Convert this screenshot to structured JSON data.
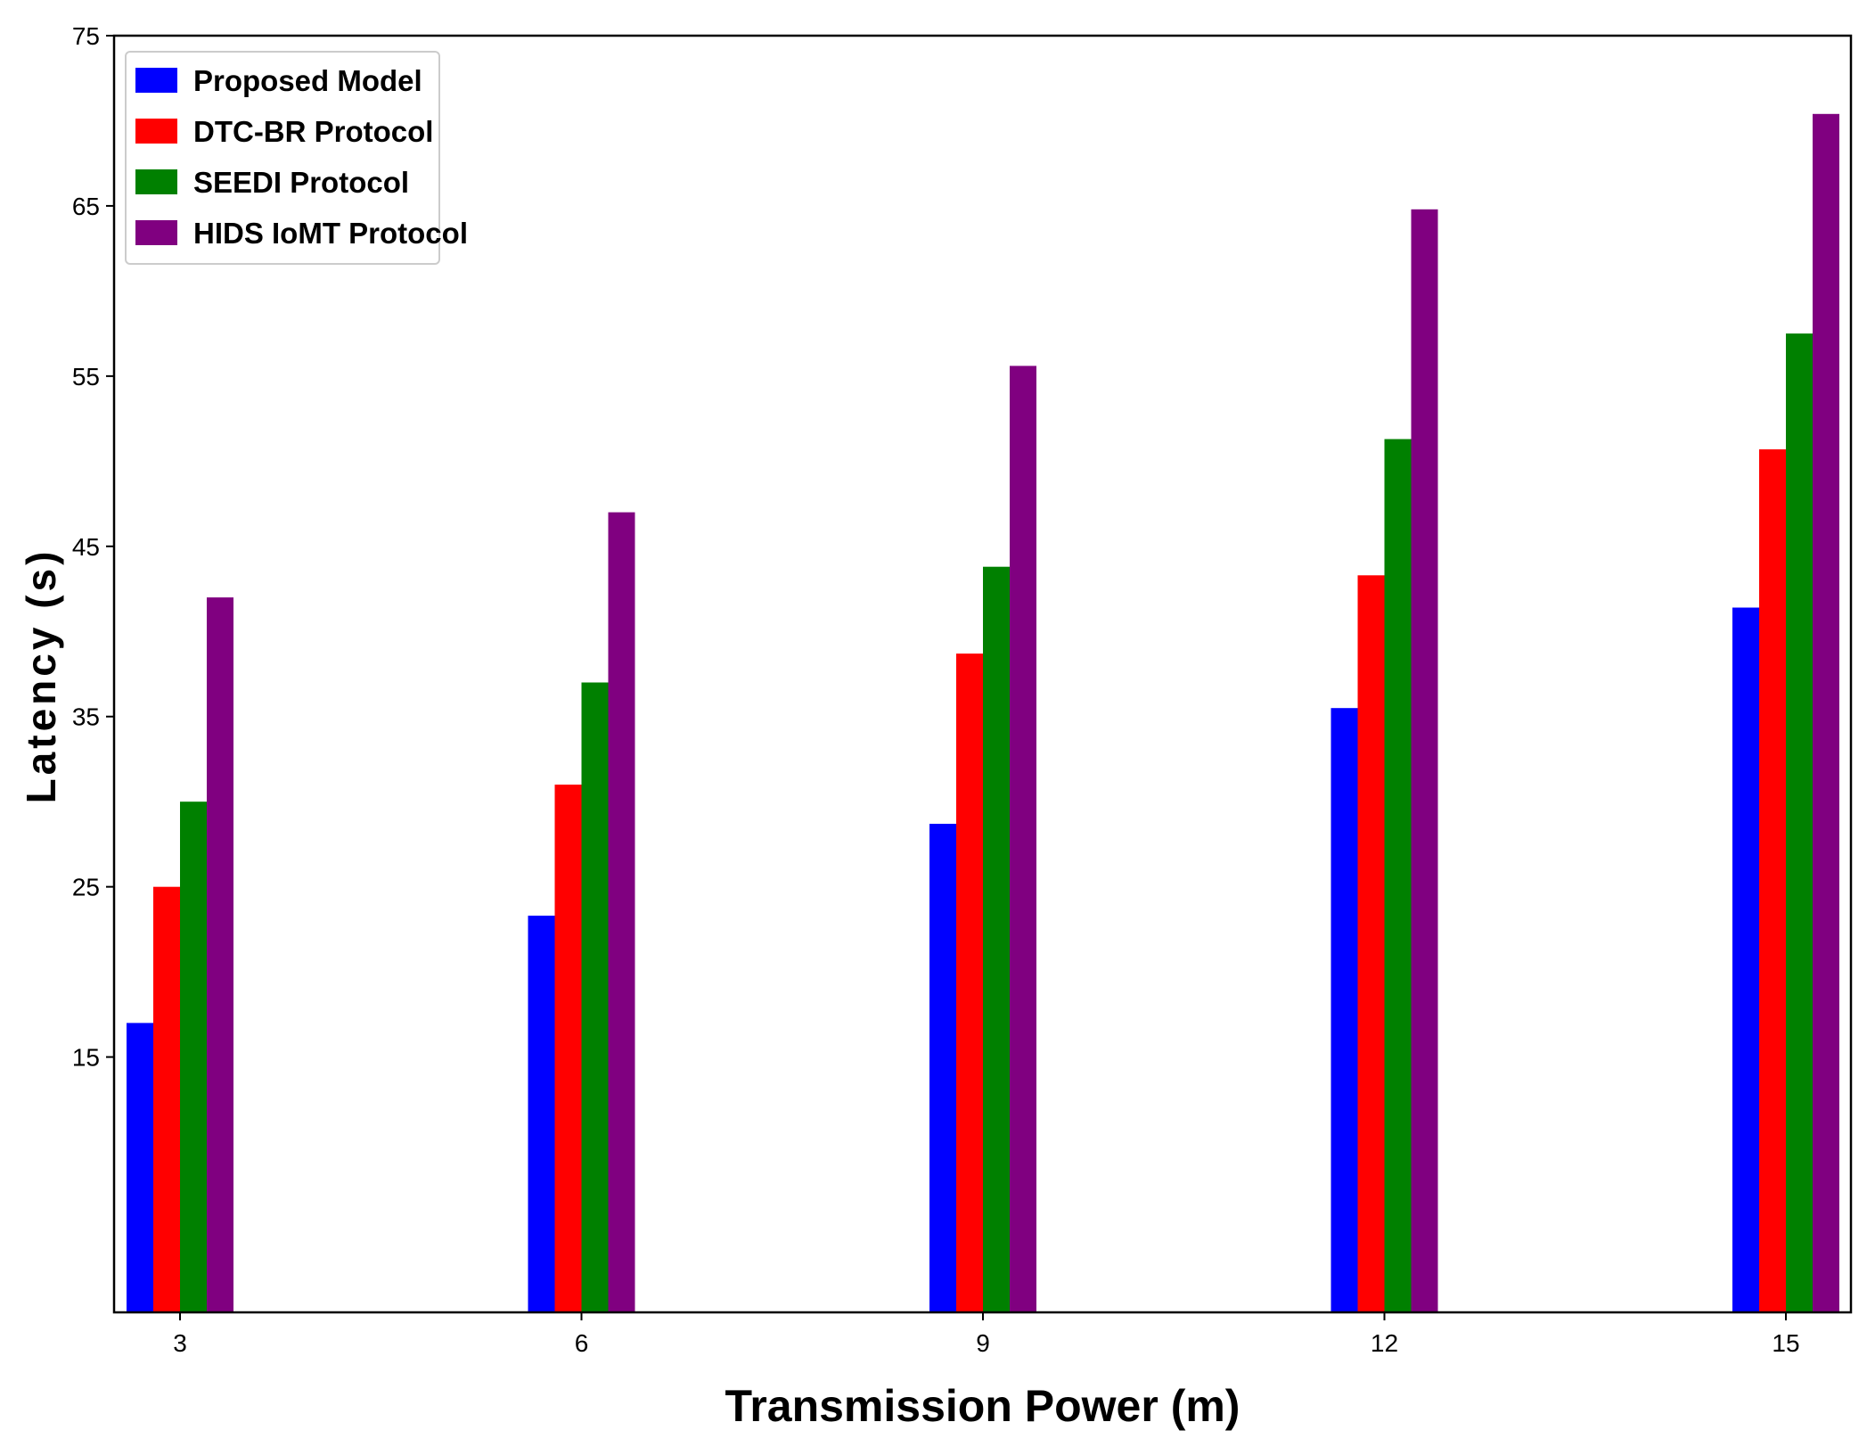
{
  "chart_data": {
    "type": "bar",
    "title": "",
    "xlabel": "Transmission Power (m)",
    "ylabel": "Latency (s)",
    "categories": [
      "3",
      "6",
      "9",
      "12",
      "15"
    ],
    "series": [
      {
        "name": "Proposed Model",
        "color": "#0000ff",
        "values": [
          17.0,
          23.3,
          28.7,
          35.5,
          41.4
        ]
      },
      {
        "name": "DTC-BR Protocol",
        "color": "#ff0000",
        "values": [
          25.0,
          31.0,
          38.7,
          43.3,
          50.7
        ]
      },
      {
        "name": "SEEDI Protocol",
        "color": "#008000",
        "values": [
          30.0,
          37.0,
          43.8,
          51.3,
          57.5
        ]
      },
      {
        "name": "HIDS IoMT Protocol",
        "color": "#800080",
        "values": [
          42.0,
          47.0,
          55.6,
          64.8,
          70.4
        ]
      }
    ],
    "yticks": [
      15,
      25,
      35,
      45,
      55,
      65,
      75
    ],
    "ylim": [
      0,
      75
    ],
    "grid": false,
    "legend_position": "top-left"
  }
}
